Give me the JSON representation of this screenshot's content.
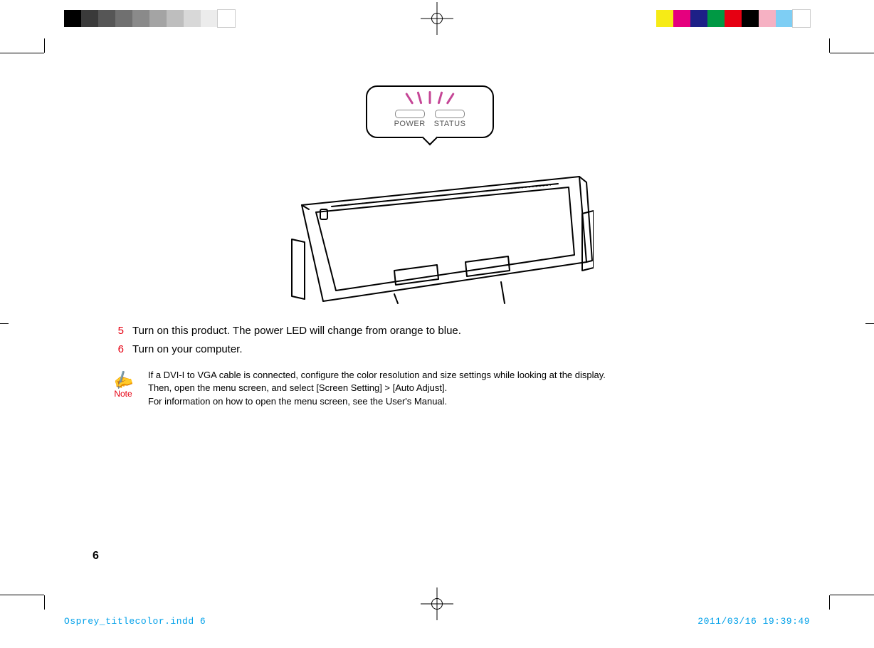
{
  "print": {
    "left_swatches": [
      "#000000",
      "#3a3a3a",
      "#565656",
      "#707070",
      "#8a8a8a",
      "#a4a4a4",
      "#bebebe",
      "#d8d8d8",
      "#ececec",
      "#ffffff"
    ],
    "right_swatches": [
      "#f6eb16",
      "#e5007e",
      "#1d2087",
      "#009944",
      "#e60012",
      "#000000",
      "#f6b1c3",
      "#7ecef4",
      "#ffffff"
    ]
  },
  "callout": {
    "power_label": "POWER",
    "status_label": "STATUS",
    "ray_color": "#c54696"
  },
  "steps": {
    "number_color": "#e60012",
    "items": [
      {
        "n": "5",
        "text": "Turn on this product. The power LED will change from orange to blue."
      },
      {
        "n": "6",
        "text": "Turn on your computer."
      }
    ]
  },
  "note": {
    "label": "Note",
    "color": "#e60012",
    "line1": "If a DVI-I to VGA cable is connected, configure the color resolution and size settings while looking at the display.",
    "line2": "Then, open the menu screen, and select [Screen Setting] > [Auto Adjust].",
    "line3": "For information on how to open the menu screen, see the User's Manual."
  },
  "page_number": "6",
  "slug": {
    "file": "Osprey_titlecolor.indd   6",
    "timestamp": "2011/03/16   19:39:49",
    "color": "#00a0e9"
  }
}
